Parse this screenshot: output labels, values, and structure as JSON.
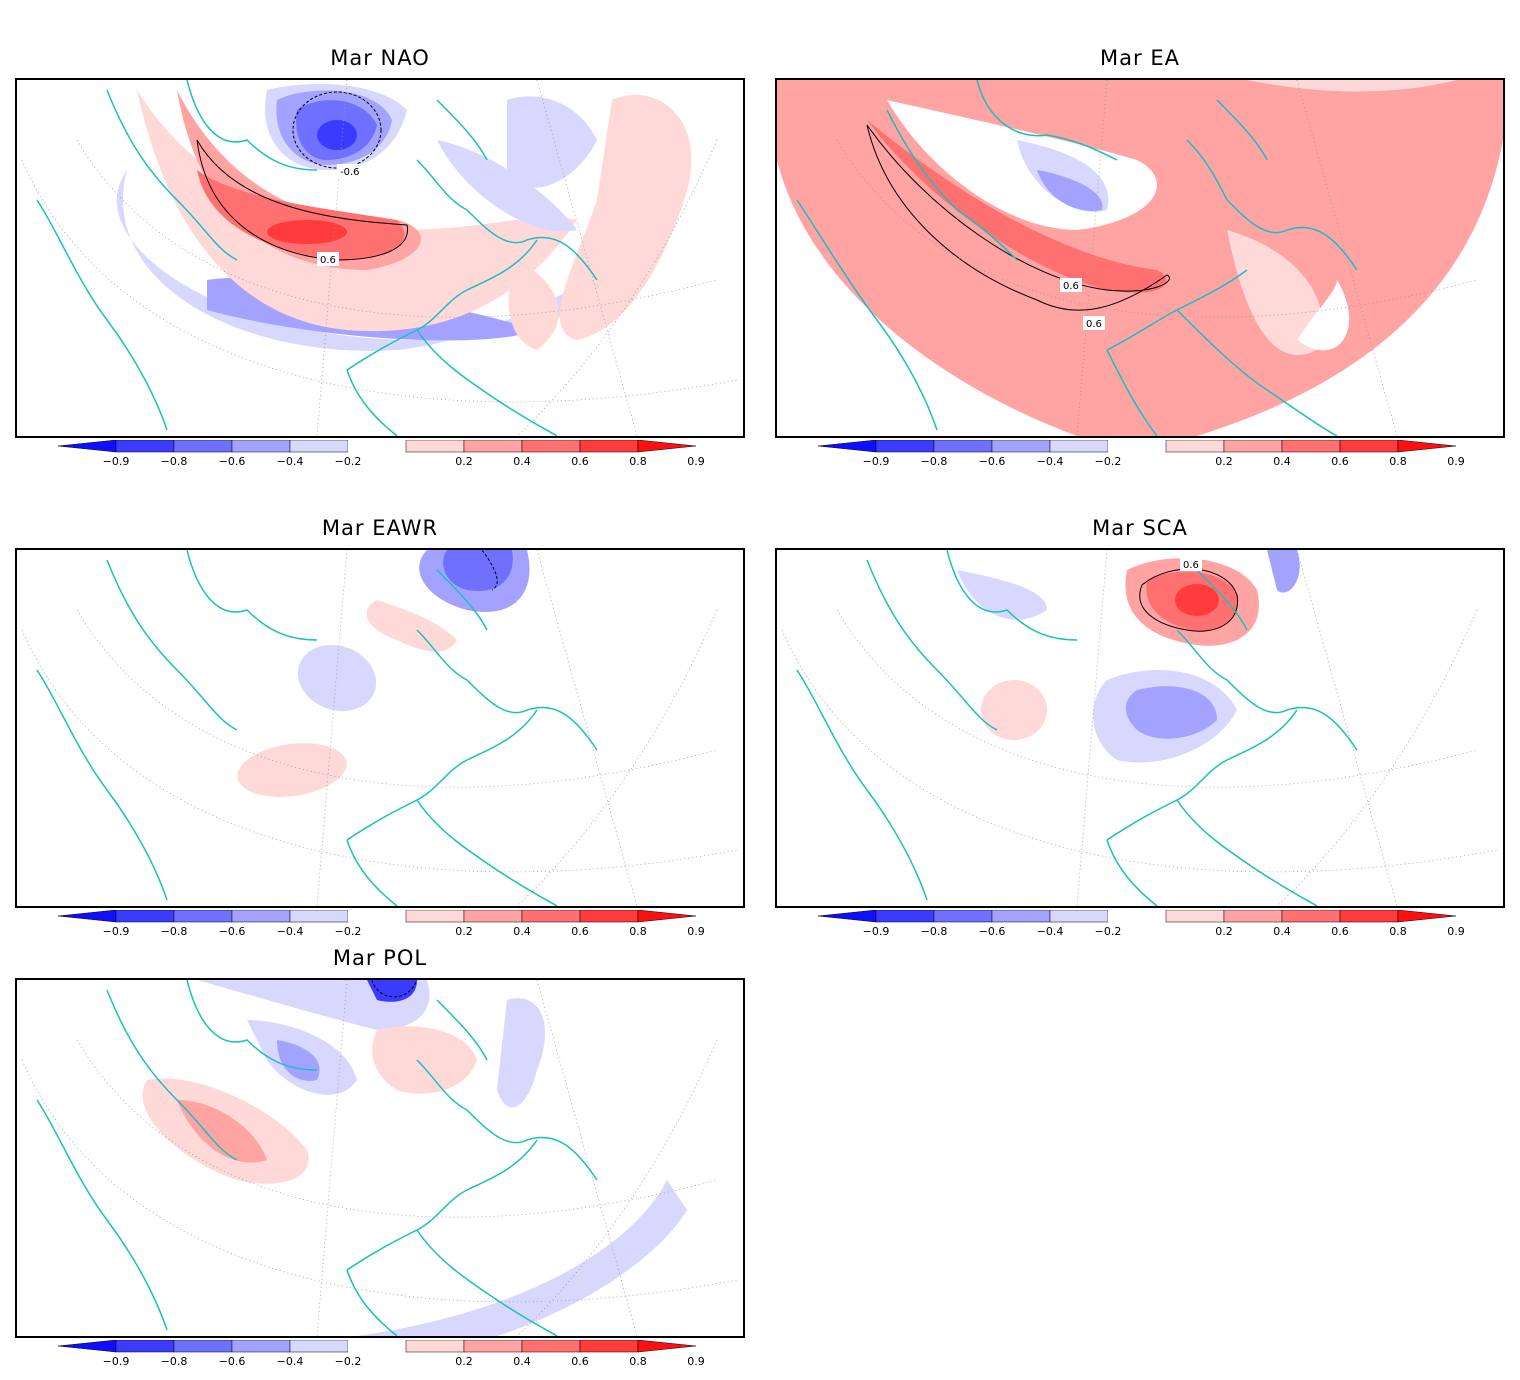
{
  "panels": [
    {
      "id": "nao",
      "title": "Mar NAO",
      "contour_labels": [
        "-0.6",
        "0.6"
      ]
    },
    {
      "id": "ea",
      "title": "Mar EA",
      "contour_labels": [
        "0.6",
        "0.6"
      ]
    },
    {
      "id": "eawr",
      "title": "Mar EAWR",
      "contour_labels": []
    },
    {
      "id": "sca",
      "title": "Mar SCA",
      "contour_labels": [
        "0.6"
      ]
    },
    {
      "id": "pol",
      "title": "Mar POL",
      "contour_labels": []
    }
  ],
  "colorbar": {
    "tick_labels": [
      "−0.9",
      "−0.8",
      "−0.6",
      "−0.4",
      "−0.2",
      "0.2",
      "0.4",
      "0.6",
      "0.8",
      "0.9"
    ],
    "colors": [
      "#0f0fff",
      "#3b3bff",
      "#7070ff",
      "#a3a3ff",
      "#d8d8ff",
      "#ffffff",
      "#ffd8d8",
      "#ffa3a3",
      "#ff7070",
      "#ff3b3b",
      "#ff0f0f"
    ]
  },
  "map_colors": {
    "coastline": "#18c0c0",
    "neg1": "#d8d8ff",
    "neg2": "#a3a3ff",
    "neg3": "#7070ff",
    "neg4": "#3b3bff",
    "pos1": "#ffd8d8",
    "pos2": "#ffa3a3",
    "pos3": "#ff7070",
    "pos4": "#ff3b3b"
  }
}
